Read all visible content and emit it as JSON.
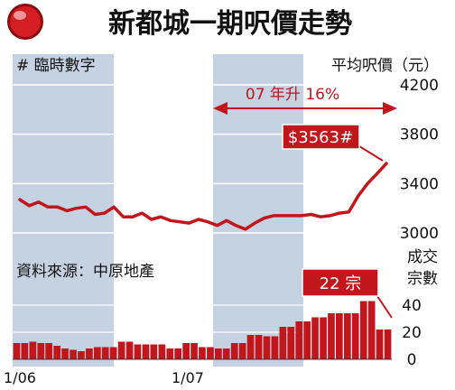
{
  "chart_data": {
    "type": "line",
    "title": "新都城一期呎價走勢",
    "subtitle": "# 臨時數字",
    "source_note": "資料來源：中原地產",
    "y_label": "平均呎價（元）",
    "y_ticks": [
      "4200",
      "3800",
      "3400",
      "3000"
    ],
    "y_range": [
      3000,
      4200
    ],
    "volume_label_line1": "成交",
    "volume_label_line2": "宗數",
    "volume_ticks": [
      "40",
      "20",
      "0"
    ],
    "volume_range": [
      0,
      40
    ],
    "x_tick_labels": [
      "1/06",
      "1/07"
    ],
    "price_series": [
      3270,
      3220,
      3250,
      3210,
      3210,
      3180,
      3200,
      3210,
      3150,
      3160,
      3210,
      3130,
      3130,
      3160,
      3110,
      3130,
      3100,
      3090,
      3080,
      3110,
      3090,
      3060,
      3100,
      3060,
      3030,
      3080,
      3120,
      3140,
      3140,
      3140,
      3140,
      3150,
      3130,
      3140,
      3160,
      3170,
      3300,
      3400,
      3480,
      3563
    ],
    "volume_series": [
      12,
      12,
      13,
      12,
      12,
      10,
      8,
      7,
      6,
      8,
      9,
      9,
      9,
      13,
      13,
      11,
      11,
      11,
      11,
      8,
      8,
      12,
      12,
      9,
      9,
      8,
      8,
      12,
      12,
      18,
      18,
      17,
      17,
      24,
      24,
      28,
      28,
      31,
      31,
      34,
      34,
      34,
      34,
      43,
      43,
      22,
      22
    ],
    "range_annotation": "07 年升 16%",
    "latest_callout": "$3563#",
    "volume_callout": "22 宗",
    "colors": {
      "band": "#c4d2e1",
      "grid": "#ffffff",
      "price_line": "#c0161c",
      "bar": "#c0161c",
      "callout": "#c0161c"
    }
  }
}
